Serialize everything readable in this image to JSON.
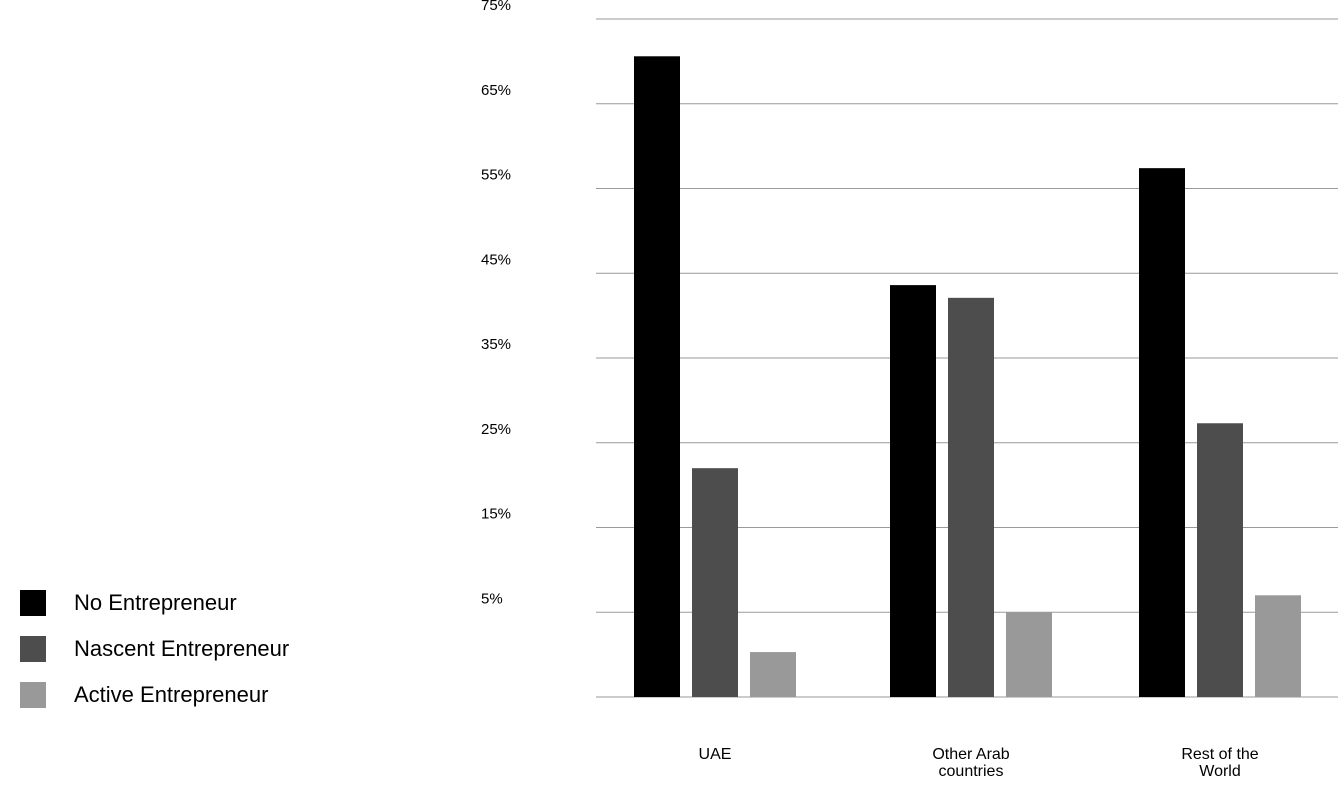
{
  "chart_data": {
    "type": "bar",
    "title": "",
    "xlabel": "",
    "ylabel": "",
    "categories": [
      "UAE",
      "Other Arab countries",
      "Rest of the World"
    ],
    "category_label_lines": [
      [
        "UAE"
      ],
      [
        "Other Arab",
        "countries"
      ],
      [
        "Rest of the",
        "World"
      ]
    ],
    "series": [
      {
        "name": "No Entrepreneur",
        "color": "#000000",
        "values": [
          70.6,
          43.6,
          57.4
        ]
      },
      {
        "name": "Nascent Entrepreneur",
        "color": "#4d4d4d",
        "values": [
          22.0,
          42.1,
          27.3
        ]
      },
      {
        "name": "Active Entrepreneur",
        "color": "#999999",
        "values": [
          0.3,
          5.0,
          7.0
        ]
      }
    ],
    "ylim": [
      -5,
      75
    ],
    "yticks": [
      5,
      15,
      25,
      35,
      45,
      55,
      65,
      75
    ],
    "ytick_labels": [
      "5%",
      "15%",
      "25%",
      "35%",
      "45%",
      "55%",
      "65%",
      "75%"
    ],
    "grid": true,
    "legend_position": "left"
  }
}
